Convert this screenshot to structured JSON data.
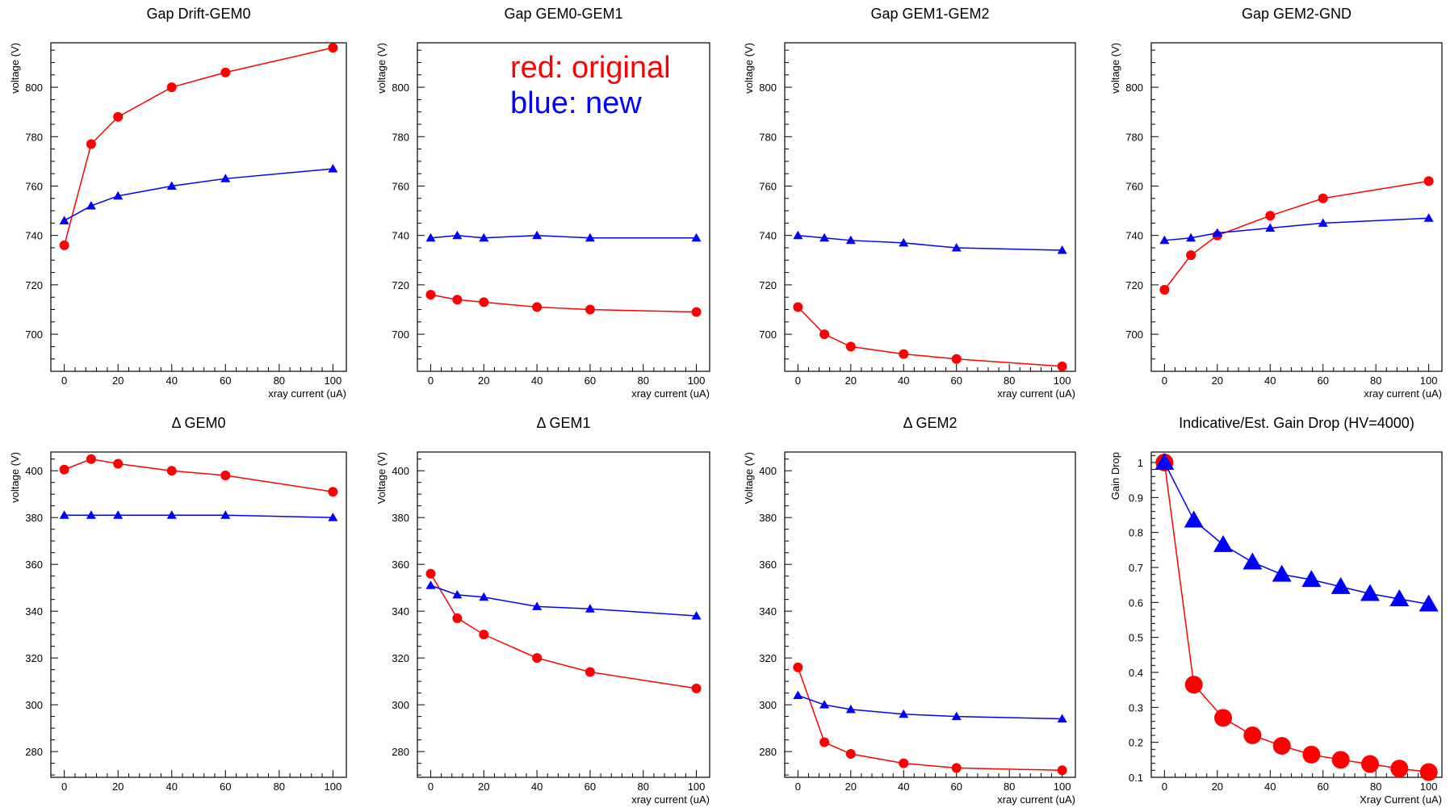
{
  "legend": {
    "items": [
      {
        "label": "red: original",
        "color": "#ff0000"
      },
      {
        "label": "blue: new",
        "color": "#0000ff"
      }
    ],
    "placement": "top-center inside the second panel"
  },
  "chart_data": [
    {
      "type": "line",
      "title": "Gap Drift-GEM0",
      "xlabel": "xray current (uA)",
      "ylabel": "voltage (V)",
      "xlim": [
        -5,
        105
      ],
      "ylim": [
        685,
        818
      ],
      "xticks": [
        0,
        20,
        40,
        60,
        80,
        100
      ],
      "xtick_labels": [
        "0",
        "20",
        "40",
        "60",
        "80",
        "100"
      ],
      "yticks": [
        700,
        720,
        740,
        760,
        780,
        800
      ],
      "ytick_labels": [
        "700",
        "720",
        "740",
        "760",
        "780",
        "800"
      ],
      "grid": false,
      "series": [
        {
          "color": "#ff0000",
          "marker": "circle",
          "marker_size": "small",
          "x": [
            0,
            10,
            20,
            40,
            60,
            100
          ],
          "values": [
            736,
            777,
            788,
            800,
            806,
            816
          ]
        },
        {
          "color": "#0000ff",
          "marker": "triangle",
          "marker_size": "small",
          "x": [
            0,
            10,
            20,
            40,
            60,
            100
          ],
          "values": [
            746,
            752,
            756,
            760,
            763,
            767
          ]
        }
      ]
    },
    {
      "type": "line",
      "title": "Gap GEM0-GEM1",
      "xlabel": "xray current (uA)",
      "ylabel": "voltage (V)",
      "xlim": [
        -5,
        105
      ],
      "ylim": [
        685,
        818
      ],
      "xticks": [
        0,
        20,
        40,
        60,
        80,
        100
      ],
      "xtick_labels": [
        "0",
        "20",
        "40",
        "60",
        "80",
        "100"
      ],
      "yticks": [
        700,
        720,
        740,
        760,
        780,
        800
      ],
      "ytick_labels": [
        "700",
        "720",
        "740",
        "760",
        "780",
        "800"
      ],
      "grid": false,
      "series": [
        {
          "color": "#ff0000",
          "marker": "circle",
          "marker_size": "small",
          "x": [
            0,
            10,
            20,
            40,
            60,
            100
          ],
          "values": [
            716,
            714,
            713,
            711,
            710,
            709
          ]
        },
        {
          "color": "#0000ff",
          "marker": "triangle",
          "marker_size": "small",
          "x": [
            0,
            10,
            20,
            40,
            60,
            100
          ],
          "values": [
            739,
            740,
            739,
            740,
            739,
            739
          ]
        }
      ]
    },
    {
      "type": "line",
      "title": "Gap GEM1-GEM2",
      "xlabel": "xray current (uA)",
      "ylabel": "voltage (V)",
      "xlim": [
        -5,
        105
      ],
      "ylim": [
        685,
        818
      ],
      "xticks": [
        0,
        20,
        40,
        60,
        80,
        100
      ],
      "xtick_labels": [
        "0",
        "20",
        "40",
        "60",
        "80",
        "100"
      ],
      "yticks": [
        700,
        720,
        740,
        760,
        780,
        800
      ],
      "ytick_labels": [
        "700",
        "720",
        "740",
        "760",
        "780",
        "800"
      ],
      "grid": false,
      "series": [
        {
          "color": "#ff0000",
          "marker": "circle",
          "marker_size": "small",
          "x": [
            0,
            10,
            20,
            40,
            60,
            100
          ],
          "values": [
            711,
            700,
            695,
            692,
            690,
            687
          ]
        },
        {
          "color": "#0000ff",
          "marker": "triangle",
          "marker_size": "small",
          "x": [
            0,
            10,
            20,
            40,
            60,
            100
          ],
          "values": [
            740,
            739,
            738,
            737,
            735,
            734
          ]
        }
      ]
    },
    {
      "type": "line",
      "title": "Gap GEM2-GND",
      "xlabel": "xray current (uA)",
      "ylabel": "voltage (V)",
      "xlim": [
        -5,
        105
      ],
      "ylim": [
        685,
        818
      ],
      "xticks": [
        0,
        20,
        40,
        60,
        80,
        100
      ],
      "xtick_labels": [
        "0",
        "20",
        "40",
        "60",
        "80",
        "100"
      ],
      "yticks": [
        700,
        720,
        740,
        760,
        780,
        800
      ],
      "ytick_labels": [
        "700",
        "720",
        "740",
        "760",
        "780",
        "800"
      ],
      "grid": false,
      "series": [
        {
          "color": "#ff0000",
          "marker": "circle",
          "marker_size": "small",
          "x": [
            0,
            10,
            20,
            40,
            60,
            100
          ],
          "values": [
            718,
            732,
            740,
            748,
            755,
            762
          ]
        },
        {
          "color": "#0000ff",
          "marker": "triangle",
          "marker_size": "small",
          "x": [
            0,
            10,
            20,
            40,
            60,
            100
          ],
          "values": [
            738,
            739,
            741,
            743,
            745,
            747
          ]
        }
      ]
    },
    {
      "type": "line",
      "title": "Δ GEM0",
      "xlabel": "",
      "ylabel": "voltage (V)",
      "xlim": [
        -5,
        105
      ],
      "ylim": [
        269,
        408
      ],
      "xticks": [
        0,
        20,
        40,
        60,
        80,
        100
      ],
      "xtick_labels": [
        "0",
        "20",
        "40",
        "60",
        "80",
        "100"
      ],
      "yticks": [
        280,
        300,
        320,
        340,
        360,
        380,
        400
      ],
      "ytick_labels": [
        "280",
        "300",
        "320",
        "340",
        "360",
        "380",
        "400"
      ],
      "grid": false,
      "series": [
        {
          "color": "#ff0000",
          "marker": "circle",
          "marker_size": "small",
          "x": [
            0,
            10,
            20,
            40,
            60,
            100
          ],
          "values": [
            400.5,
            405,
            403,
            400,
            398,
            391
          ]
        },
        {
          "color": "#0000ff",
          "marker": "triangle",
          "marker_size": "small",
          "x": [
            0,
            10,
            20,
            40,
            60,
            100
          ],
          "values": [
            381,
            381,
            381,
            381,
            381,
            380
          ]
        }
      ]
    },
    {
      "type": "line",
      "title": "Δ GEM1",
      "xlabel": "xray current (uA)",
      "ylabel": "Voltage (V)",
      "xlim": [
        -5,
        105
      ],
      "ylim": [
        269,
        408
      ],
      "xticks": [
        0,
        20,
        40,
        60,
        80,
        100
      ],
      "xtick_labels": [
        "0",
        "20",
        "40",
        "60",
        "80",
        "100"
      ],
      "yticks": [
        280,
        300,
        320,
        340,
        360,
        380,
        400
      ],
      "ytick_labels": [
        "280",
        "300",
        "320",
        "340",
        "360",
        "380",
        "400"
      ],
      "grid": false,
      "series": [
        {
          "color": "#ff0000",
          "marker": "circle",
          "marker_size": "small",
          "x": [
            0,
            10,
            20,
            40,
            60,
            100
          ],
          "values": [
            356,
            337,
            330,
            320,
            314,
            307
          ]
        },
        {
          "color": "#0000ff",
          "marker": "triangle",
          "marker_size": "small",
          "x": [
            0,
            10,
            20,
            40,
            60,
            100
          ],
          "values": [
            351,
            347,
            346,
            342,
            341,
            338
          ]
        }
      ]
    },
    {
      "type": "line",
      "title": "Δ GEM2",
      "xlabel": "xray current (uA)",
      "ylabel": "Voltage (V)",
      "xlim": [
        -5,
        105
      ],
      "ylim": [
        269,
        408
      ],
      "xticks": [
        0,
        20,
        40,
        60,
        80,
        100
      ],
      "xtick_labels": [
        "0",
        "20",
        "40",
        "60",
        "80",
        "100"
      ],
      "yticks": [
        280,
        300,
        320,
        340,
        360,
        380,
        400
      ],
      "ytick_labels": [
        "280",
        "300",
        "320",
        "340",
        "360",
        "380",
        "400"
      ],
      "grid": false,
      "series": [
        {
          "color": "#ff0000",
          "marker": "circle",
          "marker_size": "small",
          "x": [
            0,
            10,
            20,
            40,
            60,
            100
          ],
          "values": [
            316,
            284,
            279,
            275,
            273,
            272
          ]
        },
        {
          "color": "#0000ff",
          "marker": "triangle",
          "marker_size": "small",
          "x": [
            0,
            10,
            20,
            40,
            60,
            100
          ],
          "values": [
            304,
            300,
            298,
            296,
            295,
            294
          ]
        }
      ]
    },
    {
      "type": "line",
      "title": "Indicative/Est. Gain Drop (HV=4000)",
      "xlabel": "Xray Current (uA)",
      "ylabel": "Gain Drop",
      "xlim": [
        -5,
        105
      ],
      "ylim": [
        0.1,
        1.03
      ],
      "xticks": [
        0,
        20,
        40,
        60,
        80,
        100
      ],
      "xtick_labels": [
        "0",
        "20",
        "40",
        "60",
        "80",
        "100"
      ],
      "yticks": [
        0.1,
        0.2,
        0.3,
        0.4,
        0.5,
        0.6,
        0.7,
        0.8,
        0.9,
        1
      ],
      "ytick_labels": [
        "0.1",
        "0.2",
        "0.3",
        "0.4",
        "0.5",
        "0.6",
        "0.7",
        "0.8",
        "0.9",
        "1"
      ],
      "grid": false,
      "series": [
        {
          "color": "#ff0000",
          "marker": "circle",
          "marker_size": "large",
          "x": [
            0,
            11.1,
            22.2,
            33.3,
            44.4,
            55.6,
            66.7,
            77.8,
            88.9,
            100
          ],
          "values": [
            1.0,
            0.365,
            0.27,
            0.22,
            0.19,
            0.165,
            0.15,
            0.138,
            0.125,
            0.115
          ]
        },
        {
          "color": "#0000ff",
          "marker": "triangle",
          "marker_size": "large",
          "x": [
            0,
            11.1,
            22.2,
            33.3,
            44.4,
            55.6,
            66.7,
            77.8,
            88.9,
            100
          ],
          "values": [
            1.0,
            0.835,
            0.765,
            0.715,
            0.68,
            0.665,
            0.645,
            0.625,
            0.61,
            0.595
          ]
        }
      ]
    }
  ]
}
